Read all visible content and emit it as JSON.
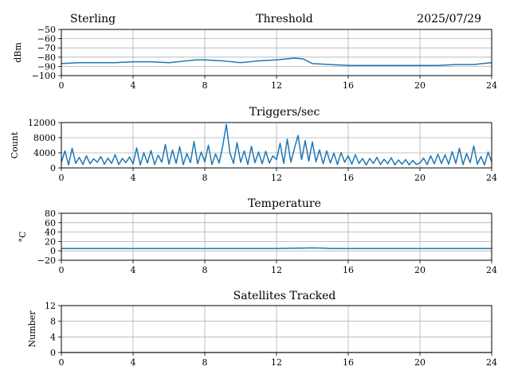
{
  "header": {
    "site": "Sterling",
    "date": "2025/07/29"
  },
  "colors": {
    "series": "#1f77b4",
    "grid": "#b0b0b0",
    "axis": "#000000"
  },
  "chart_data": [
    {
      "type": "line",
      "title": "Threshold",
      "ylabel": "dBm",
      "xlim": [
        0,
        24
      ],
      "ylim": [
        -100,
        -50
      ],
      "xticks": [
        "0",
        "4",
        "8",
        "12",
        "16",
        "20",
        "24"
      ],
      "yticks": [
        "−50",
        "−60",
        "−70",
        "−80",
        "−90",
        "−100"
      ],
      "grid": true,
      "series": [
        {
          "x": [
            0,
            1,
            2,
            3,
            4,
            5,
            6,
            7,
            7.5,
            8,
            9,
            10,
            11,
            12,
            12.5,
            13,
            13.5,
            14,
            15,
            16,
            17,
            18,
            19,
            20,
            21,
            22,
            23,
            23.5,
            24
          ],
          "values": [
            -87,
            -86,
            -86,
            -86,
            -85,
            -85,
            -86,
            -84,
            -83,
            -83,
            -84,
            -86,
            -84,
            -83,
            -82,
            -81,
            -82,
            -87,
            -88,
            -89,
            -89,
            -89,
            -89,
            -89,
            -89,
            -88,
            -88,
            -87,
            -86
          ]
        }
      ]
    },
    {
      "type": "line",
      "title": "Triggers/sec",
      "ylabel": "Count",
      "xlim": [
        0,
        24
      ],
      "ylim": [
        0,
        12000
      ],
      "xticks": [
        "0",
        "4",
        "8",
        "12",
        "16",
        "20",
        "24"
      ],
      "yticks": [
        "0",
        "4000",
        "8000",
        "12000"
      ],
      "grid": true,
      "series": [
        {
          "x": [
            0,
            0.2,
            0.4,
            0.6,
            0.8,
            1,
            1.2,
            1.4,
            1.6,
            1.8,
            2,
            2.2,
            2.4,
            2.6,
            2.8,
            3,
            3.2,
            3.4,
            3.6,
            3.8,
            4,
            4.2,
            4.4,
            4.6,
            4.8,
            5,
            5.2,
            5.4,
            5.6,
            5.8,
            6,
            6.2,
            6.4,
            6.6,
            6.8,
            7,
            7.2,
            7.4,
            7.6,
            7.8,
            8,
            8.2,
            8.4,
            8.6,
            8.8,
            9,
            9.2,
            9.4,
            9.6,
            9.8,
            10,
            10.2,
            10.4,
            10.6,
            10.8,
            11,
            11.2,
            11.4,
            11.6,
            11.8,
            12,
            12.2,
            12.4,
            12.6,
            12.8,
            13,
            13.2,
            13.4,
            13.6,
            13.8,
            14,
            14.2,
            14.4,
            14.6,
            14.8,
            15,
            15.2,
            15.4,
            15.6,
            15.8,
            16,
            16.2,
            16.4,
            16.6,
            16.8,
            17,
            17.2,
            17.4,
            17.6,
            17.8,
            18,
            18.2,
            18.4,
            18.6,
            18.8,
            19,
            19.2,
            19.4,
            19.6,
            19.8,
            20,
            20.2,
            20.4,
            20.6,
            20.8,
            21,
            21.2,
            21.4,
            21.6,
            21.8,
            22,
            22.2,
            22.4,
            22.6,
            22.8,
            23,
            23.2,
            23.4,
            23.6,
            23.8,
            24
          ],
          "values": [
            1500,
            4500,
            800,
            5200,
            1200,
            2800,
            900,
            3200,
            1100,
            2400,
            1500,
            3000,
            1000,
            2600,
            1200,
            3500,
            900,
            2500,
            1400,
            2900,
            1100,
            5300,
            800,
            4000,
            1300,
            4600,
            900,
            3400,
            1500,
            6200,
            1000,
            4700,
            1200,
            5600,
            900,
            3800,
            1400,
            7000,
            1100,
            4200,
            1600,
            6000,
            900,
            3700,
            1300,
            5800,
            11500,
            4000,
            1200,
            6700,
            1500,
            4500,
            900,
            5700,
            1400,
            4200,
            1100,
            4400,
            1300,
            3200,
            2200,
            6500,
            1200,
            7600,
            1500,
            5200,
            8600,
            2200,
            7200,
            1800,
            6900,
            1600,
            4800,
            1100,
            4500,
            1300,
            3900,
            900,
            4100,
            1500,
            3200,
            1000,
            3500,
            1200,
            2500,
            800,
            2500,
            1200,
            2800,
            900,
            2300,
            1100,
            2700,
            800,
            2100,
            1000,
            2200,
            800,
            2000,
            900,
            1300,
            2600,
            900,
            3200,
            1100,
            3600,
            1200,
            3500,
            1000,
            4300,
            1200,
            5200,
            900,
            3800,
            1400,
            5800,
            1000,
            3000,
            800,
            4200,
            1600
          ]
        }
      ]
    },
    {
      "type": "line",
      "title": "Temperature",
      "ylabel": "°C",
      "xlim": [
        0,
        24
      ],
      "ylim": [
        -20,
        80
      ],
      "xticks": [
        "0",
        "4",
        "8",
        "12",
        "16",
        "20",
        "24"
      ],
      "yticks": [
        "−20",
        "0",
        "20",
        "40",
        "60",
        "80"
      ],
      "grid": true,
      "series": [
        {
          "x": [
            0,
            2,
            4,
            6,
            8,
            10,
            12,
            13,
            13.5,
            14,
            14.5,
            15,
            16,
            18,
            20,
            22,
            24
          ],
          "values": [
            5,
            5,
            5,
            5,
            5,
            5,
            5,
            5.6,
            5.9,
            6.2,
            5.8,
            5,
            5,
            5,
            5,
            5,
            5
          ]
        }
      ]
    },
    {
      "type": "line",
      "title": "Satellites Tracked",
      "ylabel": "Number",
      "xlim": [
        0,
        24
      ],
      "ylim": [
        0,
        12
      ],
      "xticks": [
        "0",
        "4",
        "8",
        "12",
        "16",
        "20",
        "24"
      ],
      "yticks": [
        "0",
        "4",
        "8",
        "12"
      ],
      "grid": true,
      "series": [
        {
          "x": [
            0,
            24
          ],
          "values": [
            0,
            0
          ]
        }
      ]
    }
  ]
}
